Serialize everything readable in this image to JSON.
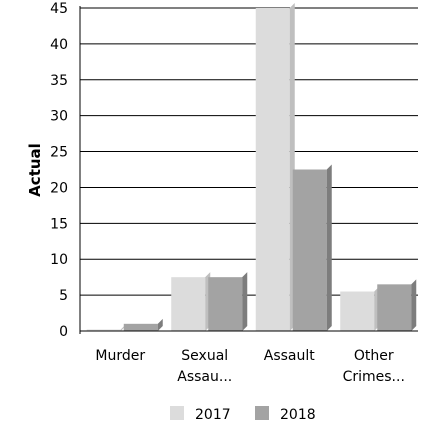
{
  "chart_data": {
    "type": "bar",
    "ylabel": "Actual",
    "xlabel": "",
    "ylim": [
      0,
      45
    ],
    "yticks": [
      0,
      5,
      10,
      15,
      20,
      25,
      30,
      35,
      40,
      45
    ],
    "categories": [
      [
        "Murder"
      ],
      [
        "Sexual",
        "Assau..."
      ],
      [
        "Assault"
      ],
      [
        "Other",
        "Crimes..."
      ]
    ],
    "series": [
      {
        "name": "2017",
        "values": [
          0,
          7.5,
          45,
          5.5
        ]
      },
      {
        "name": "2018",
        "values": [
          1,
          7.5,
          22.5,
          6.5
        ]
      }
    ],
    "grid": true,
    "legend_position": "bottom",
    "colors": {
      "2017": "#dcdcdc",
      "2018": "#a3a3a3",
      "grid": "#000000"
    }
  }
}
